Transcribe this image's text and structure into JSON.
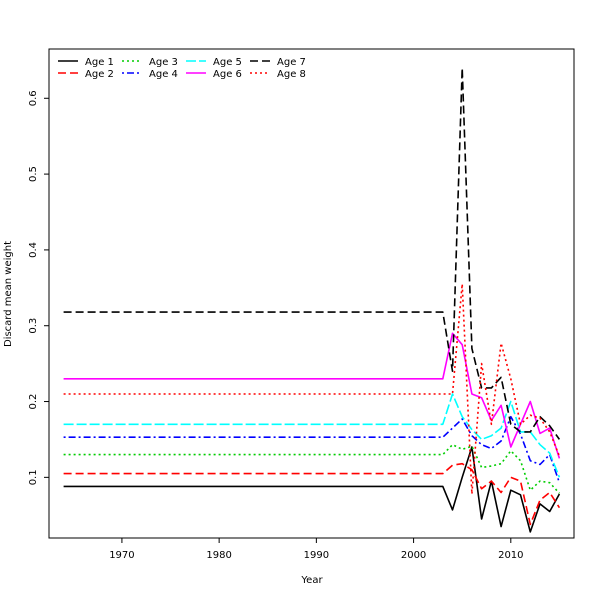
{
  "chart_data": {
    "type": "line",
    "xlabel": "Year",
    "ylabel": "Discard mean weight",
    "xlim": [
      1962.5,
      2016.5
    ],
    "ylim": [
      0.02,
      0.665
    ],
    "x_ticks": [
      1970,
      1980,
      1990,
      2000,
      2010
    ],
    "y_ticks": [
      0.1,
      0.2,
      0.3,
      0.4,
      0.5,
      0.6
    ],
    "grid": false,
    "legend_position": "top-left",
    "x": [
      1964,
      2003,
      2004,
      2005,
      2006,
      2007,
      2008,
      2009,
      2010,
      2011,
      2012,
      2013,
      2014,
      2015
    ],
    "series": [
      {
        "name": "Age 1",
        "color": "#000000",
        "dash": "solid",
        "values": [
          0.088,
          0.088,
          0.057,
          0.1,
          0.14,
          0.045,
          0.095,
          0.035,
          0.083,
          0.077,
          0.028,
          0.065,
          0.055,
          0.078
        ]
      },
      {
        "name": "Age 2",
        "color": "#ff0000",
        "dash": "dashed",
        "values": [
          0.105,
          0.105,
          0.116,
          0.118,
          0.11,
          0.085,
          0.095,
          0.08,
          0.1,
          0.095,
          0.038,
          0.07,
          0.08,
          0.06
        ]
      },
      {
        "name": "Age 3",
        "color": "#00cd00",
        "dash": "dotted",
        "values": [
          0.13,
          0.13,
          0.143,
          0.137,
          0.141,
          0.113,
          0.115,
          0.118,
          0.135,
          0.122,
          0.083,
          0.095,
          0.093,
          0.079
        ]
      },
      {
        "name": "Age 4",
        "color": "#0000ff",
        "dash": "dotdash",
        "values": [
          0.153,
          0.153,
          0.165,
          0.177,
          0.155,
          0.143,
          0.138,
          0.148,
          0.18,
          0.157,
          0.122,
          0.117,
          0.13,
          0.093
        ]
      },
      {
        "name": "Age 5",
        "color": "#00ffff",
        "dash": "longdash",
        "values": [
          0.17,
          0.17,
          0.21,
          0.18,
          0.163,
          0.15,
          0.155,
          0.165,
          0.2,
          0.16,
          0.16,
          0.143,
          0.132,
          0.1
        ]
      },
      {
        "name": "Age 6",
        "color": "#ff00ff",
        "dash": "solid",
        "values": [
          0.23,
          0.23,
          0.29,
          0.275,
          0.21,
          0.205,
          0.175,
          0.195,
          0.14,
          0.17,
          0.2,
          0.158,
          0.165,
          0.125
        ]
      },
      {
        "name": "Age 7",
        "color": "#000000",
        "dash": "dashed",
        "values": [
          0.318,
          0.318,
          0.24,
          0.64,
          0.27,
          0.218,
          0.218,
          0.232,
          0.17,
          0.16,
          0.16,
          0.18,
          0.168,
          0.15
        ]
      },
      {
        "name": "Age 8",
        "color": "#ff0000",
        "dash": "dotted",
        "values": [
          0.21,
          0.21,
          0.21,
          0.355,
          0.078,
          0.25,
          0.17,
          0.277,
          0.23,
          0.17,
          0.182,
          0.178,
          0.16,
          0.128
        ]
      }
    ]
  }
}
